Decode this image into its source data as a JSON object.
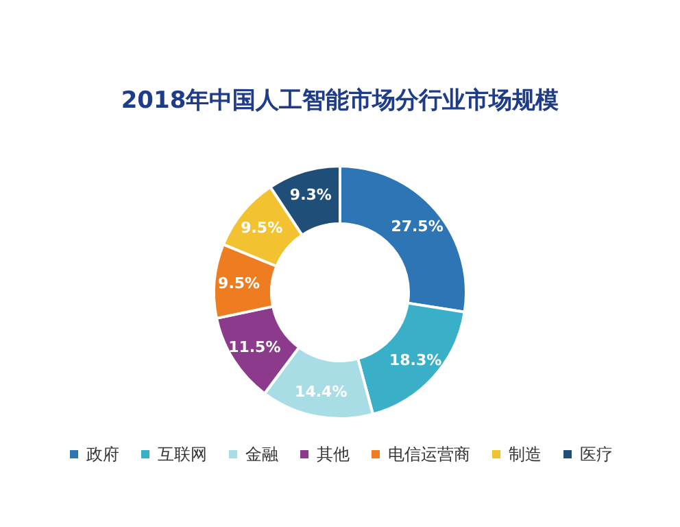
{
  "chart_data": {
    "type": "donut",
    "title": "2018年中国人工智能市场分行业市场规模",
    "categories": [
      "政府",
      "互联网",
      "金融",
      "其他",
      "电信运营商",
      "制造",
      "医疗"
    ],
    "values": [
      27.5,
      18.3,
      14.4,
      11.5,
      9.5,
      9.5,
      9.3
    ],
    "value_labels": [
      "27.5%",
      "18.3%",
      "14.4%",
      "11.5%",
      "9.5%",
      "9.5%",
      "9.3%"
    ],
    "colors": [
      "#2e75b6",
      "#3ab0c8",
      "#a9dde6",
      "#8c3a8c",
      "#ee7d22",
      "#f2c230",
      "#1f4e79"
    ],
    "legend": "bottom"
  }
}
